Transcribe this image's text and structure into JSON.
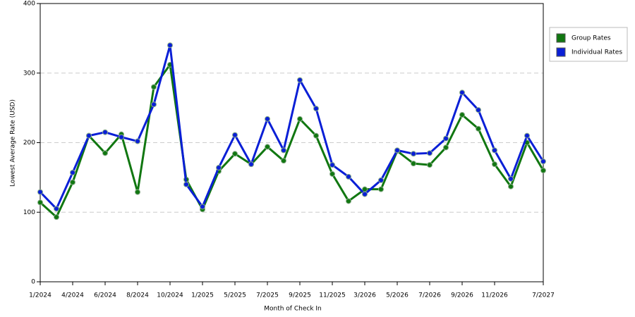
{
  "chart_data": {
    "type": "line",
    "x_label": "Month of Check In",
    "y_label": "Lowest Average Rate (USD)",
    "categories": [
      "1/2024",
      null,
      "4/2024",
      null,
      "6/2024",
      null,
      "8/2024",
      null,
      "10/2024",
      null,
      "1/2025",
      null,
      "5/2025",
      null,
      "7/2025",
      null,
      "9/2025",
      null,
      "11/2025",
      null,
      "3/2026",
      null,
      "5/2026",
      null,
      "7/2026",
      null,
      "9/2026",
      null,
      "11/2026",
      null,
      null,
      "7/2027"
    ],
    "series": [
      {
        "name": "Group Rates",
        "color": "#117711",
        "values": [
          114,
          93,
          143,
          210,
          185,
          212,
          129,
          280,
          312,
          147,
          104,
          159,
          184,
          169,
          194,
          174,
          234,
          210,
          155,
          116,
          133,
          133,
          188,
          170,
          168,
          193,
          240,
          220,
          169,
          137,
          200,
          160
        ]
      },
      {
        "name": "Individual Rates",
        "color": "#0a1fd6",
        "values": [
          129,
          105,
          157,
          210,
          215,
          208,
          202,
          255,
          340,
          140,
          108,
          164,
          211,
          169,
          234,
          189,
          290,
          249,
          168,
          151,
          126,
          146,
          189,
          184,
          185,
          206,
          272,
          247,
          189,
          148,
          210,
          173
        ]
      }
    ],
    "ylim": [
      0,
      400
    ],
    "yticks": [
      0,
      100,
      200,
      300,
      400
    ],
    "grid": true,
    "legend": "right"
  }
}
